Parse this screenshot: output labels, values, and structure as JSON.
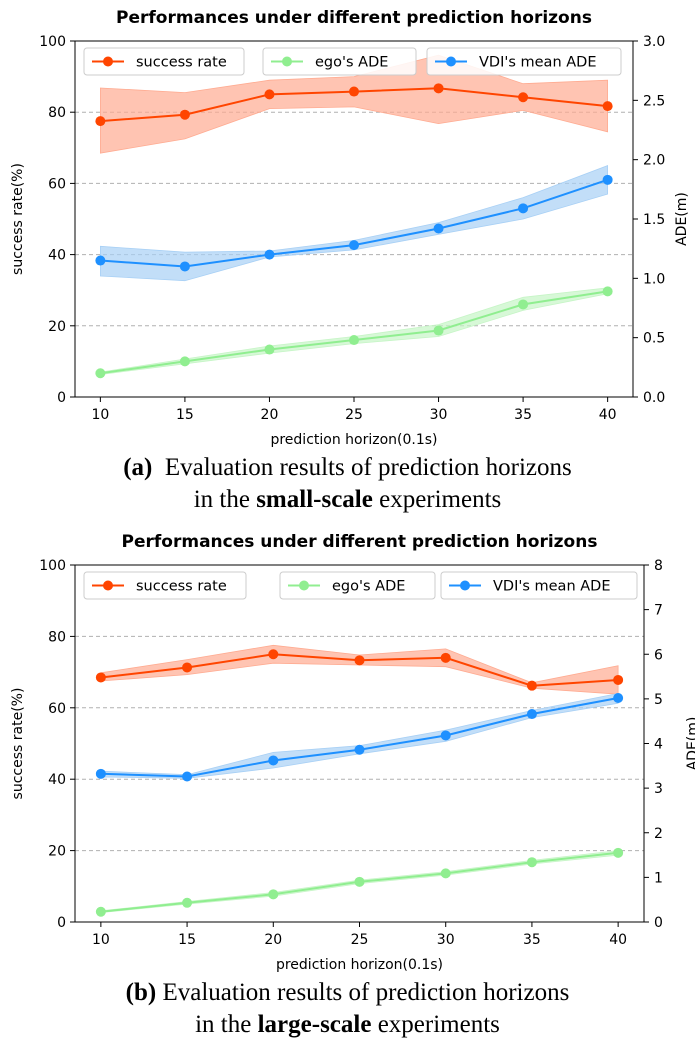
{
  "chart_data": [
    {
      "type": "line",
      "title": "Performances under different prediction horizons",
      "xlabel": "prediction horizon(0.1s)",
      "ylabel": "success rate(%)",
      "ylabel_right": "ADE(m)",
      "x": [
        10,
        15,
        20,
        25,
        30,
        35,
        40
      ],
      "xlim": [
        8.5,
        41.5
      ],
      "ylim": [
        0,
        100
      ],
      "y_ticks": [
        0,
        20,
        40,
        60,
        80,
        100
      ],
      "ylim_right": [
        0,
        3.0
      ],
      "y_ticks_right": [
        "0.0",
        "0.5",
        "1.0",
        "1.5",
        "2.0",
        "2.5",
        "3.0"
      ],
      "grid": "horizontal dashed",
      "legend_position": "top",
      "series": [
        {
          "name": "success rate",
          "axis": "left",
          "color": "#ff4500",
          "band_color": "#ffab91",
          "values": [
            77.5,
            79.3,
            85.0,
            85.8,
            86.7,
            84.2,
            81.7
          ],
          "lower": [
            68.5,
            72.5,
            81.0,
            81.5,
            76.8,
            80.5,
            74.5
          ],
          "upper": [
            86.8,
            85.5,
            89.0,
            90.0,
            96.0,
            88.0,
            89.0
          ]
        },
        {
          "name": "ego's ADE",
          "axis": "right",
          "color": "#90ee90",
          "band_color": "#c6f5c6",
          "values": [
            0.2,
            0.3,
            0.4,
            0.48,
            0.56,
            0.78,
            0.89
          ],
          "lower": [
            0.19,
            0.28,
            0.37,
            0.45,
            0.51,
            0.73,
            0.87
          ],
          "upper": [
            0.21,
            0.32,
            0.43,
            0.51,
            0.61,
            0.84,
            0.92
          ]
        },
        {
          "name": "VDI's mean ADE",
          "axis": "right",
          "color": "#1e90ff",
          "band_color": "#a8d0f5",
          "values": [
            1.15,
            1.1,
            1.2,
            1.28,
            1.42,
            1.59,
            1.83
          ],
          "lower": [
            1.02,
            0.98,
            1.18,
            1.24,
            1.37,
            1.5,
            1.71
          ],
          "upper": [
            1.27,
            1.22,
            1.23,
            1.32,
            1.47,
            1.68,
            1.95
          ]
        }
      ]
    },
    {
      "type": "line",
      "title": "Performances under different prediction horizons",
      "xlabel": "prediction horizon(0.1s)",
      "ylabel": "success rate(%)",
      "ylabel_right": "ADE(m)",
      "x": [
        10,
        15,
        20,
        25,
        30,
        35,
        40
      ],
      "xlim": [
        8.5,
        41.5
      ],
      "ylim": [
        0,
        100
      ],
      "y_ticks": [
        0,
        20,
        40,
        60,
        80,
        100
      ],
      "ylim_right": [
        0,
        8
      ],
      "y_ticks_right": [
        "0",
        "1",
        "2",
        "3",
        "4",
        "5",
        "6",
        "7",
        "8"
      ],
      "grid": "horizontal dashed",
      "legend_position": "top",
      "series": [
        {
          "name": "success rate",
          "axis": "left",
          "color": "#ff4500",
          "band_color": "#ffab91",
          "values": [
            68.5,
            71.3,
            75.0,
            73.3,
            74.0,
            66.2,
            67.8
          ],
          "lower": [
            67.5,
            69.3,
            72.5,
            72.0,
            71.5,
            65.5,
            63.8
          ],
          "upper": [
            69.8,
            73.5,
            77.5,
            74.8,
            76.5,
            67.0,
            71.8
          ]
        },
        {
          "name": "ego's ADE",
          "axis": "right",
          "color": "#90ee90",
          "band_color": "#c6f5c6",
          "values": [
            0.23,
            0.43,
            0.62,
            0.9,
            1.09,
            1.34,
            1.55
          ],
          "lower": [
            0.21,
            0.4,
            0.58,
            0.86,
            1.05,
            1.3,
            1.5
          ],
          "upper": [
            0.25,
            0.46,
            0.66,
            0.94,
            1.13,
            1.38,
            1.6
          ]
        },
        {
          "name": "VDI's mean ADE",
          "axis": "right",
          "color": "#1e90ff",
          "band_color": "#a8d0f5",
          "values": [
            3.32,
            3.26,
            3.62,
            3.86,
            4.18,
            4.66,
            5.02
          ],
          "lower": [
            3.25,
            3.22,
            3.45,
            3.77,
            4.05,
            4.58,
            4.9
          ],
          "upper": [
            3.38,
            3.3,
            3.8,
            3.95,
            4.3,
            4.74,
            5.12
          ]
        }
      ]
    }
  ],
  "captions": [
    {
      "label": "(a)",
      "line1": "Evaluation results of prediction horizons",
      "line2_pre": "in the ",
      "line2_bold": "small-scale",
      "line2_post": " experiments"
    },
    {
      "label": "(b)",
      "line1": "Evaluation results of prediction horizons",
      "line2_pre": "in the ",
      "line2_bold": "large-scale",
      "line2_post": " experiments"
    }
  ]
}
